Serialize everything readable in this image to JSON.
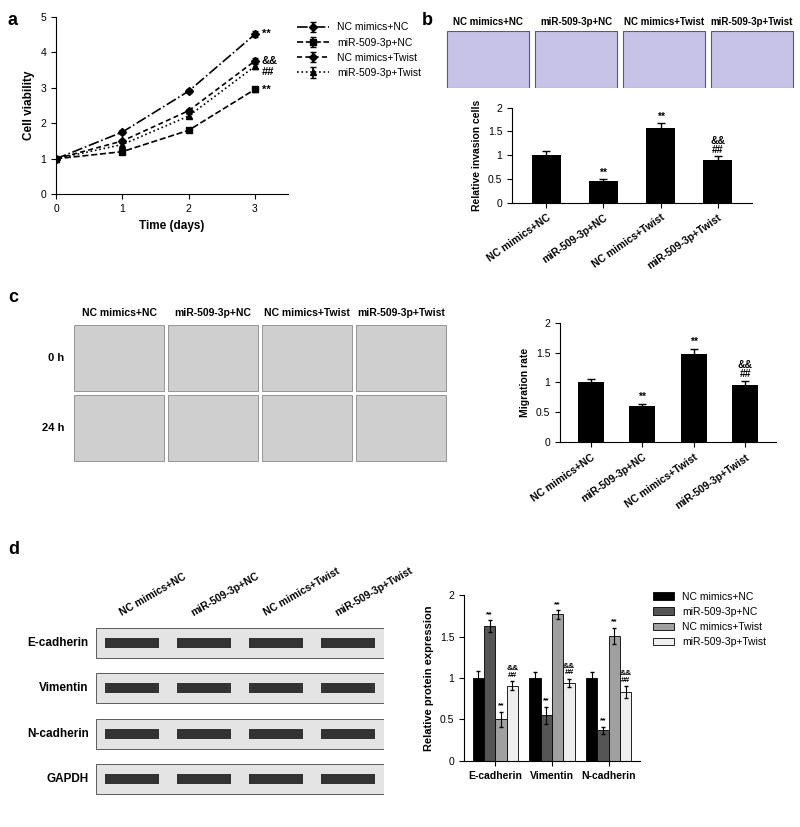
{
  "panel_labels": [
    "a",
    "b",
    "c",
    "d"
  ],
  "chart_data": [
    {
      "type": "line",
      "xlabel": "Time (days)",
      "ylabel": "Cell viability",
      "x": [
        0,
        1,
        2,
        3
      ],
      "xlim": [
        0,
        3.5
      ],
      "xticks": [
        0,
        1,
        2,
        3
      ],
      "ylim": [
        0,
        5
      ],
      "yticks": [
        0,
        1,
        2,
        3,
        4,
        5
      ],
      "legend": "right",
      "series": [
        {
          "name": "NC mimics+NC",
          "color": "#000000",
          "marker": "diamond",
          "line_style": "dashdot",
          "values": [
            1,
            1.75,
            2.9,
            4.5
          ],
          "errors": [
            0.03,
            0.05,
            0.06,
            0.08
          ],
          "significance": [
            "**"
          ]
        },
        {
          "name": "miR-509-3p+NC",
          "color": "#000000",
          "marker": "square",
          "line_style": "dashed",
          "values": [
            1,
            1.2,
            1.8,
            2.95
          ],
          "errors": [
            0.03,
            0.04,
            0.05,
            0.08
          ],
          "significance": [
            "**"
          ]
        },
        {
          "name": "NC mimics+Twist",
          "color": "#000000",
          "marker": "diamond",
          "line_style": "short_dashed",
          "values": [
            1,
            1.5,
            2.35,
            3.75
          ],
          "errors": [
            0.03,
            0.04,
            0.05,
            0.08
          ]
        },
        {
          "name": "miR-509-3p+Twist",
          "color": "#000000",
          "marker": "triangle",
          "line_style": "dotted",
          "values": [
            1,
            1.4,
            2.2,
            3.6
          ],
          "errors": [
            0.03,
            0.04,
            0.05,
            0.08
          ],
          "significance": [
            "&&",
            "##"
          ]
        }
      ]
    },
    {
      "type": "bar",
      "ylabel": "Relative invasion cells",
      "categories": [
        "NC mimics+NC",
        "miR-509-3p+NC",
        "NC mimics+Twist",
        "miR-509-3p+Twist"
      ],
      "values": [
        1.0,
        0.45,
        1.57,
        0.9
      ],
      "errors": [
        0.08,
        0.05,
        0.1,
        0.07
      ],
      "significance": [
        null,
        [
          "**"
        ],
        [
          "**"
        ],
        [
          "&&",
          "##"
        ]
      ],
      "color": "#000000",
      "ylim": [
        0,
        2
      ],
      "yticks": [
        0,
        0.5,
        1,
        1.5,
        2
      ]
    },
    {
      "type": "bar",
      "ylabel": "Migration rate",
      "categories": [
        "NC mimics+NC",
        "miR-509-3p+NC",
        "NC mimics+Twist",
        "miR-509-3p+Twist"
      ],
      "values": [
        1.0,
        0.6,
        1.48,
        0.96
      ],
      "errors": [
        0.05,
        0.04,
        0.08,
        0.07
      ],
      "significance": [
        null,
        [
          "**"
        ],
        [
          "**"
        ],
        [
          "&&",
          "##"
        ]
      ],
      "color": "#000000",
      "ylim": [
        0,
        2
      ],
      "yticks": [
        0,
        0.5,
        1,
        1.5,
        2
      ]
    },
    {
      "type": "bar",
      "ylabel": "Relative protein expression",
      "categories": [
        "E-cadherin",
        "Vimentin",
        "N-cadherin"
      ],
      "ylim": [
        0,
        2
      ],
      "yticks": [
        0,
        0.5,
        1,
        1.5,
        2
      ],
      "legend": "right",
      "series": [
        {
          "name": "NC mimics+NC",
          "color": "#000000",
          "values": [
            1,
            1,
            1
          ],
          "errors": [
            0.09,
            0.08,
            0.07
          ]
        },
        {
          "name": "miR-509-3p+NC",
          "color": "#555555",
          "values": [
            1.63,
            0.55,
            0.37
          ],
          "errors": [
            0.07,
            0.1,
            0.04
          ],
          "significance": [
            [
              "**"
            ],
            [
              "**"
            ],
            [
              "**"
            ]
          ]
        },
        {
          "name": "NC mimics+Twist",
          "color": "#a0a0a0",
          "values": [
            0.5,
            1.77,
            1.51
          ],
          "errors": [
            0.09,
            0.05,
            0.1
          ],
          "significance": [
            [
              "**"
            ],
            [
              "**"
            ],
            [
              "**"
            ]
          ]
        },
        {
          "name": "miR-509-3p+Twist",
          "color": "#eeeeee",
          "values": [
            0.91,
            0.94,
            0.83
          ],
          "errors": [
            0.05,
            0.05,
            0.07
          ],
          "significance": [
            [
              "&&",
              "##"
            ],
            [
              "&&",
              "##"
            ],
            [
              "&&",
              "##"
            ]
          ]
        }
      ]
    }
  ],
  "invasion_images": {
    "columns": [
      "NC mimics+NC",
      "miR-509-3p+NC",
      "NC mimics+Twist",
      "miR-509-3p+Twist"
    ]
  },
  "wound_images": {
    "columns": [
      "NC mimics+NC",
      "miR-509-3p+NC",
      "NC mimics+Twist",
      "miR-509-3p+Twist"
    ],
    "rows": [
      "0 h",
      "24 h"
    ]
  },
  "western_blot": {
    "columns": [
      "NC mimics+NC",
      "miR-509-3p+NC",
      "NC mimics+Twist",
      "miR-509-3p+Twist"
    ],
    "rows": [
      "E-cadherin",
      "Vimentin",
      "N-cadherin",
      "GAPDH"
    ]
  }
}
